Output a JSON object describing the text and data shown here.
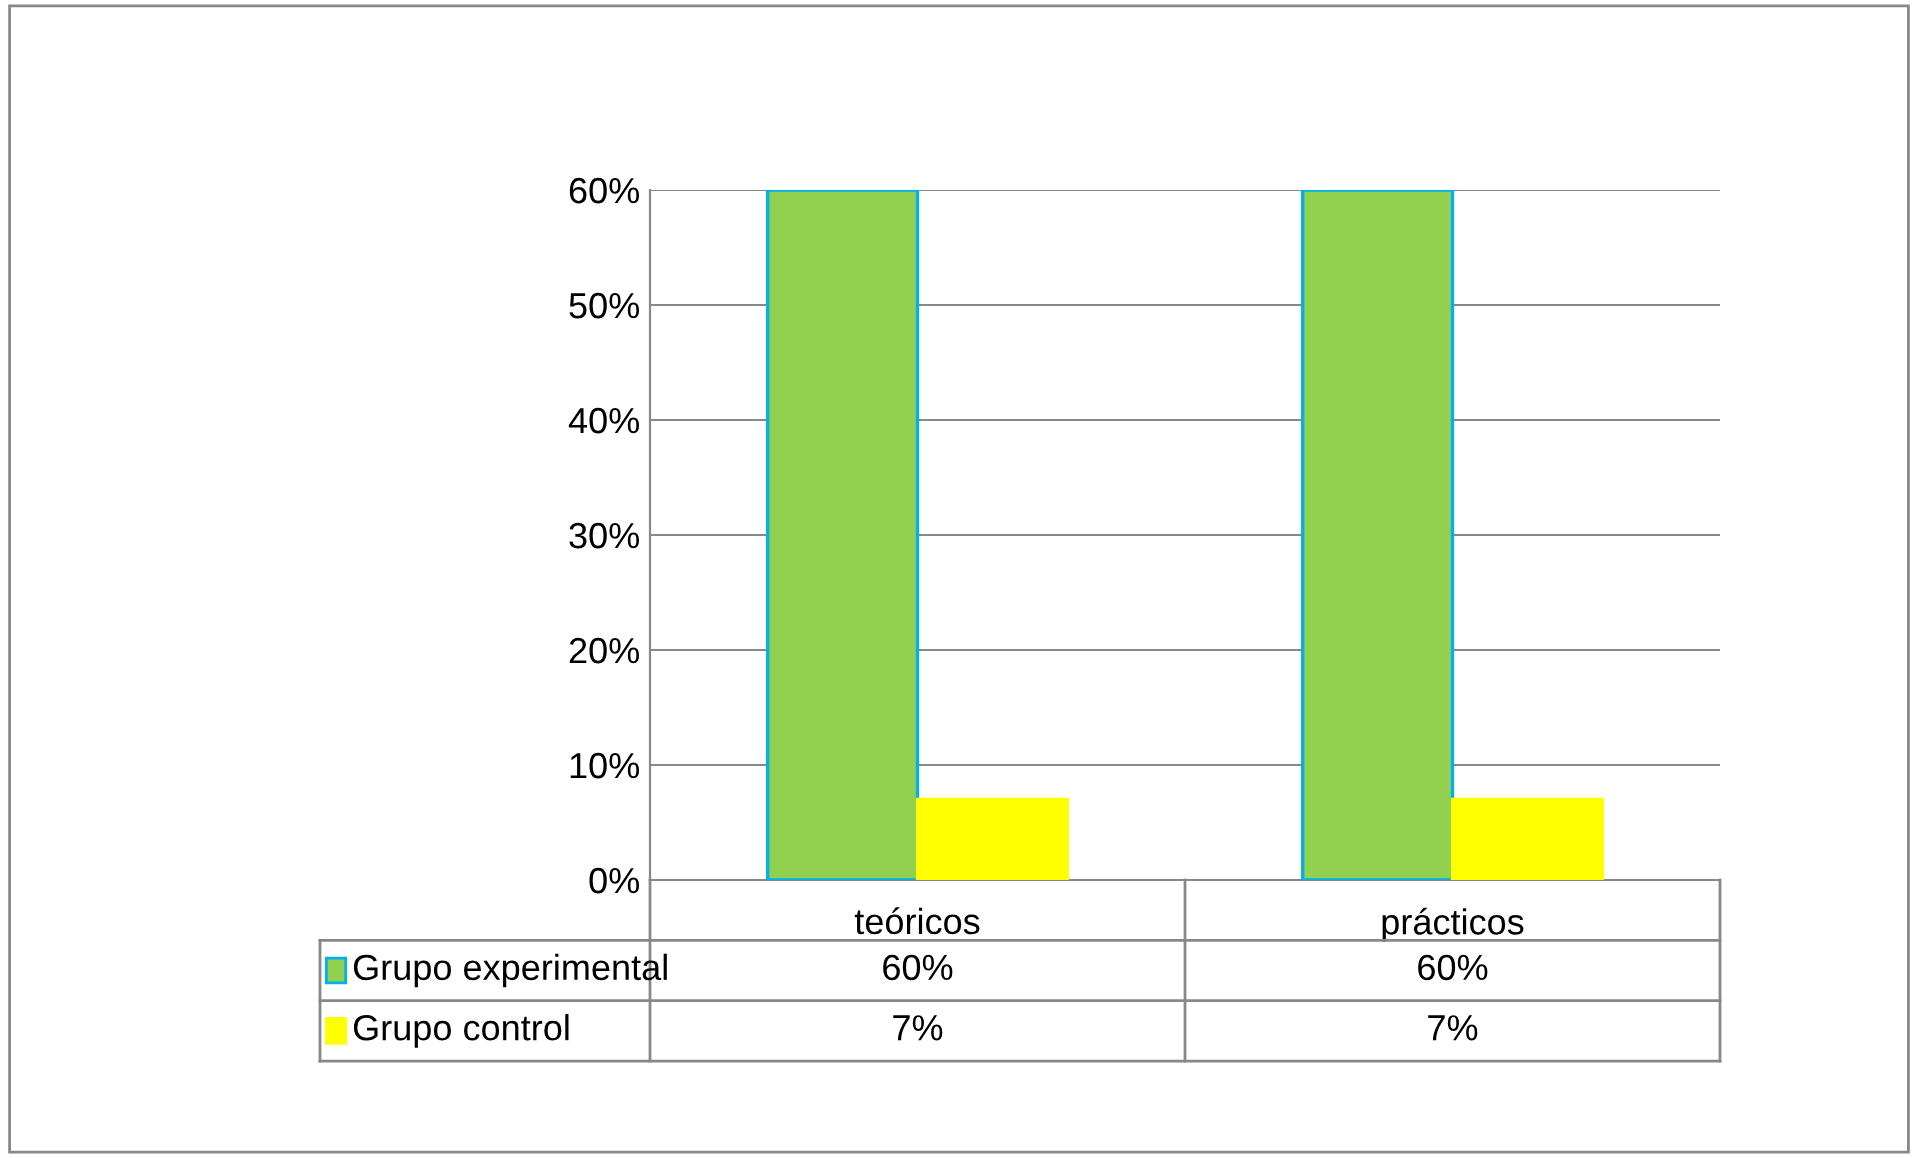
{
  "chart_data": {
    "type": "bar",
    "categories": [
      "teóricos",
      "prácticos"
    ],
    "series": [
      {
        "name": "Grupo experimental",
        "color": "#92d050",
        "values": [
          60,
          60
        ],
        "value_labels": [
          "60%",
          "60%"
        ]
      },
      {
        "name": "Grupo control",
        "color": "#ffff00",
        "values": [
          7,
          7
        ],
        "value_labels": [
          "7%",
          "7%"
        ]
      }
    ],
    "ylim": [
      0,
      60
    ],
    "yticks": [
      {
        "value": 0,
        "label": "0%"
      },
      {
        "value": 10,
        "label": "10%"
      },
      {
        "value": 20,
        "label": "20%"
      },
      {
        "value": 30,
        "label": "30%"
      },
      {
        "value": 40,
        "label": "40%"
      },
      {
        "value": 50,
        "label": "50%"
      },
      {
        "value": 60,
        "label": "60%"
      }
    ],
    "grid": "y",
    "legend": "bottom"
  }
}
